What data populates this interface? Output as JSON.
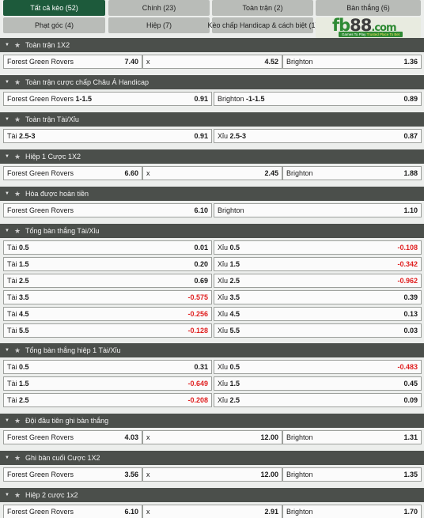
{
  "tabs": [
    {
      "label": "Tất cả kèo (52)",
      "active": true
    },
    {
      "label": "Chính (23)",
      "active": false
    },
    {
      "label": "Toàn trận (2)",
      "active": false
    },
    {
      "label": "Bàn thắng (6)",
      "active": false
    },
    {
      "label": "Phạt góc (4)",
      "active": false
    },
    {
      "label": "Hiệp (7)",
      "active": false
    },
    {
      "label": "Kèo chấp Handicap & cách biệt (1)",
      "active": false
    }
  ],
  "logo": {
    "brand_left": "fb",
    "brand_right": "88",
    "brand_suffix": ".com",
    "slogan_a": "Games To Play",
    "slogan_b": "Trusted Place To Bet"
  },
  "sections": [
    {
      "title": "Toàn trận 1X2",
      "layout": 3,
      "rows": [
        [
          {
            "label": "Forest Green Rovers",
            "odd": "7.40"
          },
          {
            "label": "x",
            "odd": "4.52"
          },
          {
            "label": "Brighton",
            "odd": "1.36"
          }
        ]
      ]
    },
    {
      "title": "Toàn trận cược chấp Châu Á Handicap",
      "layout": 2,
      "rows": [
        [
          {
            "label": "Forest Green Rovers",
            "hcap": "1-1.5",
            "odd": "0.91"
          },
          {
            "label": "Brighton",
            "hcap": "-1-1.5",
            "odd": "0.89"
          }
        ]
      ]
    },
    {
      "title": "Toàn trận Tài/Xỉu",
      "layout": 2,
      "rows": [
        [
          {
            "label": "Tài",
            "hcap": "2.5-3",
            "odd": "0.91"
          },
          {
            "label": "Xỉu",
            "hcap": "2.5-3",
            "odd": "0.87"
          }
        ]
      ]
    },
    {
      "title": "Hiệp 1 Cược 1X2",
      "layout": 3,
      "rows": [
        [
          {
            "label": "Forest Green Rovers",
            "odd": "6.60"
          },
          {
            "label": "x",
            "odd": "2.45"
          },
          {
            "label": "Brighton",
            "odd": "1.88"
          }
        ]
      ]
    },
    {
      "title": "Hòa được hoàn tiền",
      "layout": 2,
      "rows": [
        [
          {
            "label": "Forest Green Rovers",
            "odd": "6.10"
          },
          {
            "label": "Brighton",
            "odd": "1.10"
          }
        ]
      ]
    },
    {
      "title": "Tổng bàn thắng Tài/Xỉu",
      "layout": 2,
      "rows": [
        [
          {
            "label": "Tài",
            "hcap": "0.5",
            "odd": "0.01"
          },
          {
            "label": "Xỉu",
            "hcap": "0.5",
            "odd": "-0.108"
          }
        ],
        [
          {
            "label": "Tài",
            "hcap": "1.5",
            "odd": "0.20"
          },
          {
            "label": "Xỉu",
            "hcap": "1.5",
            "odd": "-0.342"
          }
        ],
        [
          {
            "label": "Tài",
            "hcap": "2.5",
            "odd": "0.69"
          },
          {
            "label": "Xỉu",
            "hcap": "2.5",
            "odd": "-0.962"
          }
        ],
        [
          {
            "label": "Tài",
            "hcap": "3.5",
            "odd": "-0.575"
          },
          {
            "label": "Xỉu",
            "hcap": "3.5",
            "odd": "0.39"
          }
        ],
        [
          {
            "label": "Tài",
            "hcap": "4.5",
            "odd": "-0.256"
          },
          {
            "label": "Xỉu",
            "hcap": "4.5",
            "odd": "0.13"
          }
        ],
        [
          {
            "label": "Tài",
            "hcap": "5.5",
            "odd": "-0.128"
          },
          {
            "label": "Xỉu",
            "hcap": "5.5",
            "odd": "0.03"
          }
        ]
      ]
    },
    {
      "title": "Tổng bàn thắng hiệp 1 Tài/Xỉu",
      "layout": 2,
      "rows": [
        [
          {
            "label": "Tài",
            "hcap": "0.5",
            "odd": "0.31"
          },
          {
            "label": "Xỉu",
            "hcap": "0.5",
            "odd": "-0.483"
          }
        ],
        [
          {
            "label": "Tài",
            "hcap": "1.5",
            "odd": "-0.649"
          },
          {
            "label": "Xỉu",
            "hcap": "1.5",
            "odd": "0.45"
          }
        ],
        [
          {
            "label": "Tài",
            "hcap": "2.5",
            "odd": "-0.208"
          },
          {
            "label": "Xỉu",
            "hcap": "2.5",
            "odd": "0.09"
          }
        ]
      ]
    },
    {
      "title": "Đội đầu tiên ghi bàn thắng",
      "layout": 3,
      "rows": [
        [
          {
            "label": "Forest Green Rovers",
            "odd": "4.03"
          },
          {
            "label": "x",
            "odd": "12.00"
          },
          {
            "label": "Brighton",
            "odd": "1.31"
          }
        ]
      ]
    },
    {
      "title": "Ghi bàn cuối Cược 1X2",
      "layout": 3,
      "rows": [
        [
          {
            "label": "Forest Green Rovers",
            "odd": "3.56"
          },
          {
            "label": "x",
            "odd": "12.00"
          },
          {
            "label": "Brighton",
            "odd": "1.35"
          }
        ]
      ]
    },
    {
      "title": "Hiệp 2 cược 1x2",
      "layout": 3,
      "rows": [
        [
          {
            "label": "Forest Green Rovers",
            "odd": "6.10"
          },
          {
            "label": "x",
            "odd": "2.91"
          },
          {
            "label": "Brighton",
            "odd": "1.70"
          }
        ]
      ]
    }
  ],
  "icons": {
    "collapse": "caret-down-icon",
    "favorite": "star-icon"
  },
  "colors": {
    "active_tab": "#1d5a3b",
    "header": "#4b4f4b",
    "negative_odd": "#e02020",
    "brand_green": "#2e8a34"
  }
}
